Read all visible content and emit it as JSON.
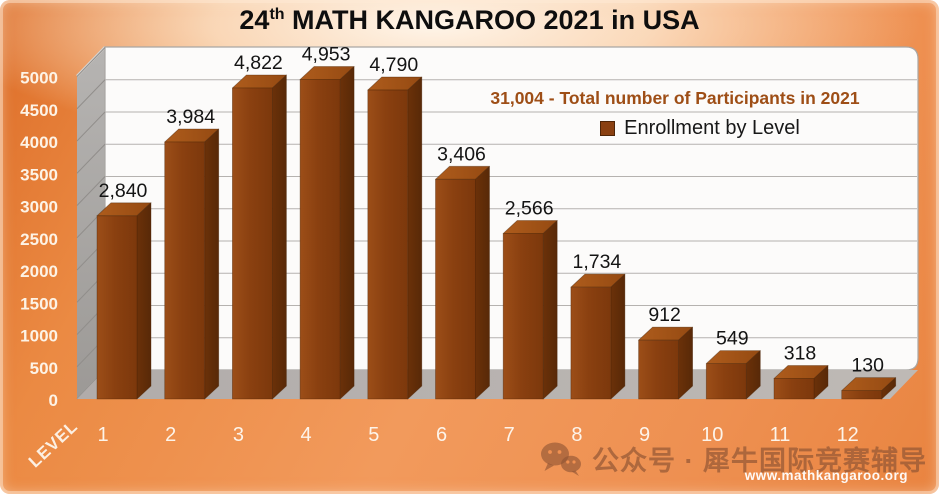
{
  "title": {
    "number": "24",
    "ordinal": "th",
    "text": " MATH KANGAROO 2021 in USA"
  },
  "annotations": {
    "total_participants": "31,004 - Total number of Participants in 2021",
    "legend_label": "Enrollment by Level"
  },
  "watermark": {
    "label": "公众号 · 犀牛国际竞赛辅导",
    "website": "www.mathkangaroo.org"
  },
  "colors": {
    "background": "#ee8f4f",
    "bar_front": "#8a4211",
    "bar_top": "#a25314",
    "bar_side": "#5f2c0a",
    "accent_text": "#9e4e16",
    "wall_gray": "#aaa8a6",
    "floor_gray": "#b9b4b0"
  },
  "chart_data": {
    "type": "bar",
    "style": "3d",
    "title": "24th MATH KANGAROO 2021 in USA",
    "xlabel": "LEVEL",
    "ylabel": "",
    "categories": [
      "1",
      "2",
      "3",
      "4",
      "5",
      "6",
      "7",
      "8",
      "9",
      "10",
      "11",
      "12"
    ],
    "values": [
      2840,
      3984,
      4822,
      4953,
      4790,
      3406,
      2566,
      1734,
      912,
      549,
      318,
      130
    ],
    "value_labels": [
      "2,840",
      "3,984",
      "4,822",
      "4,953",
      "4,790",
      "3,406",
      "2,566",
      "1,734",
      "912",
      "549",
      "318",
      "130"
    ],
    "ylim": [
      0,
      5000
    ],
    "ytick_step": 500,
    "ytick_labels": [
      "0",
      "500",
      "1000",
      "1500",
      "2000",
      "2500",
      "3000",
      "3500",
      "4000",
      "4500",
      "5000"
    ],
    "grid": true,
    "legend": [
      "Enrollment by Level"
    ],
    "legend_position": "top-right",
    "total": 31004
  }
}
